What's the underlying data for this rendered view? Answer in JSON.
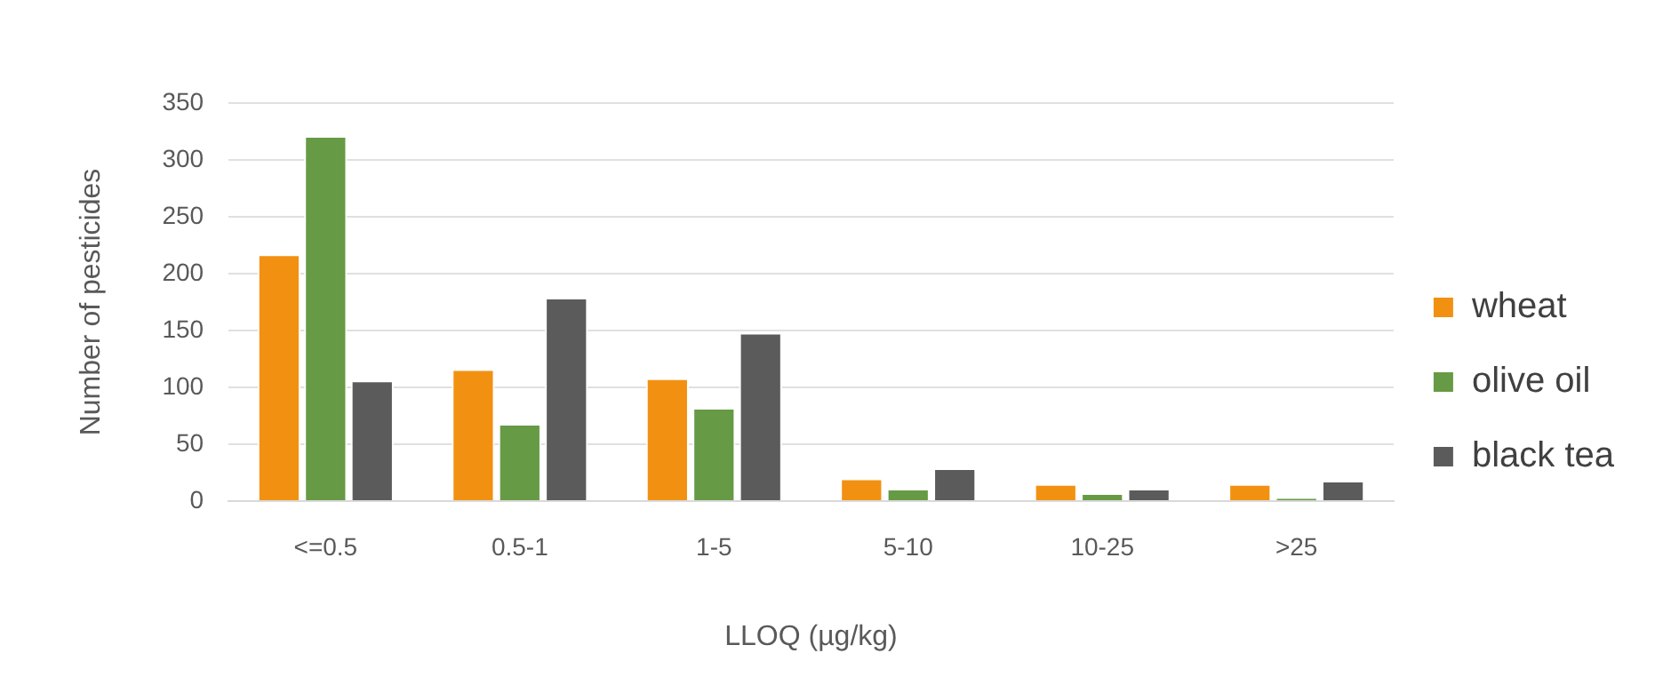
{
  "chart_data": {
    "type": "bar",
    "xlabel": "LLOQ (µg/kg)",
    "ylabel": "Number of pesticides",
    "categories": [
      "<=0.5",
      "0.5-1",
      "1-5",
      "5-10",
      "10-25",
      ">25"
    ],
    "series": [
      {
        "name": "wheat",
        "color": "#f29111",
        "values": [
          217,
          116,
          108,
          20,
          15,
          15
        ]
      },
      {
        "name": "olive oil",
        "color": "#669a45",
        "values": [
          321,
          68,
          82,
          11,
          7,
          3
        ]
      },
      {
        "name": "black tea",
        "color": "#5b5b5b",
        "values": [
          106,
          179,
          148,
          29,
          11,
          18
        ]
      }
    ],
    "ylim": [
      0,
      350
    ],
    "yticks": [
      0,
      50,
      100,
      150,
      200,
      250,
      300,
      350
    ],
    "grid": "y",
    "legend": "right"
  }
}
